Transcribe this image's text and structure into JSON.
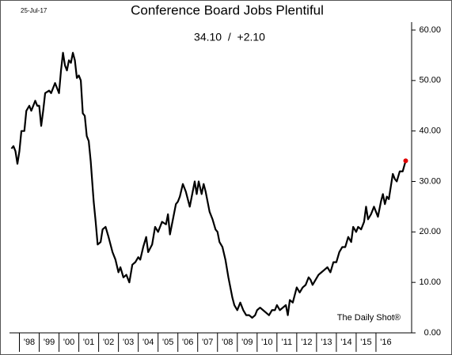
{
  "chart_data": {
    "type": "line",
    "title": "Conference Board Jobs Plentiful",
    "subtitle": "34.10  /  +2.10",
    "date": "25-Jul-17",
    "annotation": "The Daily Shot®",
    "x": [
      1997.6,
      1997.7,
      1997.8,
      1997.9,
      1998.0,
      1998.1,
      1998.25,
      1998.35,
      1998.5,
      1998.6,
      1998.8,
      1998.9,
      1999.0,
      1999.1,
      1999.2,
      1999.3,
      1999.5,
      1999.6,
      1999.8,
      2000.0,
      2000.1,
      2000.2,
      2000.3,
      2000.4,
      2000.5,
      2000.6,
      2000.7,
      2000.8,
      2000.9,
      2001.0,
      2001.1,
      2001.2,
      2001.3,
      2001.4,
      2001.5,
      2001.6,
      2001.75,
      2001.85,
      2001.95,
      2002.1,
      2002.2,
      2002.35,
      2002.5,
      2002.7,
      2002.85,
      2003.0,
      2003.1,
      2003.25,
      2003.4,
      2003.55,
      2003.7,
      2003.85,
      2004.0,
      2004.1,
      2004.25,
      2004.4,
      2004.5,
      2004.7,
      2004.85,
      2005.0,
      2005.2,
      2005.4,
      2005.5,
      2005.6,
      2005.75,
      2005.9,
      2006.0,
      2006.1,
      2006.25,
      2006.4,
      2006.5,
      2006.6,
      2006.75,
      2006.85,
      2006.95,
      2007.05,
      2007.2,
      2007.3,
      2007.4,
      2007.5,
      2007.6,
      2007.75,
      2007.9,
      2008.0,
      2008.1,
      2008.25,
      2008.4,
      2008.55,
      2008.65,
      2008.75,
      2008.85,
      2009.0,
      2009.15,
      2009.3,
      2009.45,
      2009.6,
      2009.75,
      2009.9,
      2010.0,
      2010.15,
      2010.3,
      2010.45,
      2010.6,
      2010.75,
      2010.9,
      2011.0,
      2011.15,
      2011.3,
      2011.45,
      2011.55,
      2011.65,
      2011.8,
      2011.9,
      2012.0,
      2012.15,
      2012.3,
      2012.45,
      2012.6,
      2012.7,
      2012.8,
      2012.95,
      2013.1,
      2013.25,
      2013.4,
      2013.55,
      2013.7,
      2013.85,
      2014.0,
      2014.15,
      2014.3,
      2014.45,
      2014.6,
      2014.75,
      2014.85,
      2015.0,
      2015.1,
      2015.25,
      2015.4,
      2015.5,
      2015.6,
      2015.75,
      2015.9,
      2016.0,
      2016.1,
      2016.25,
      2016.35,
      2016.45,
      2016.55,
      2016.65,
      2016.75,
      2016.85,
      2016.95,
      2017.05,
      2017.2,
      2017.35,
      2017.5
    ],
    "series": [
      {
        "color": "#000000",
        "last_point_color": "#e00000",
        "values": [
          36.5,
          37,
          36,
          33.5,
          36,
          40,
          40,
          44,
          45,
          44,
          46,
          45,
          45,
          41,
          44,
          47.5,
          48,
          47.5,
          49.5,
          47.5,
          52,
          55.5,
          53,
          52,
          54,
          53.5,
          55.5,
          54,
          50.5,
          51,
          50,
          43.5,
          43,
          39,
          38,
          34,
          26,
          22,
          17.5,
          18,
          20.5,
          21,
          19,
          16,
          14.5,
          12,
          13,
          11,
          11.5,
          10,
          13.5,
          14,
          15,
          14.5,
          17,
          19,
          16,
          17.5,
          21,
          20,
          22,
          21.5,
          23.5,
          19.5,
          22.5,
          25.5,
          26,
          27,
          29.5,
          28,
          26.5,
          25,
          28,
          30,
          27.5,
          30,
          27.5,
          29.5,
          28,
          26,
          24,
          22.5,
          20.5,
          20,
          18,
          17,
          14.5,
          11,
          9,
          7,
          5.5,
          4.5,
          6,
          4.5,
          3.5,
          3.5,
          3,
          3.5,
          4.5,
          5,
          4.5,
          4,
          3.5,
          4.5,
          4.5,
          5.5,
          4.5,
          5,
          5.5,
          3.5,
          6.5,
          6,
          7.5,
          9,
          8,
          9,
          9.5,
          11,
          10.5,
          9.5,
          10.5,
          11.5,
          12,
          12.5,
          13,
          12,
          14,
          14,
          16,
          17,
          17,
          19,
          18,
          21,
          20,
          21,
          20.5,
          22,
          25,
          22.5,
          23.5,
          25,
          24,
          23,
          26,
          27.5,
          25.5,
          27,
          26.5,
          29,
          31.5,
          30.5,
          30,
          32,
          32,
          34.1
        ]
      }
    ],
    "xlim": [
      1997.5,
      2017.8
    ],
    "xticks": [
      {
        "value": 1998.5,
        "label": "'98"
      },
      {
        "value": 1999.5,
        "label": "'99"
      },
      {
        "value": 2000.5,
        "label": "'00"
      },
      {
        "value": 2001.5,
        "label": "'01"
      },
      {
        "value": 2002.5,
        "label": "'02"
      },
      {
        "value": 2003.5,
        "label": "'03"
      },
      {
        "value": 2004.5,
        "label": "'04"
      },
      {
        "value": 2005.5,
        "label": "'05"
      },
      {
        "value": 2006.5,
        "label": "'06"
      },
      {
        "value": 2007.5,
        "label": "'07"
      },
      {
        "value": 2008.5,
        "label": "'08"
      },
      {
        "value": 2009.5,
        "label": "'09"
      },
      {
        "value": 2010.5,
        "label": "'10"
      },
      {
        "value": 2011.5,
        "label": "'11"
      },
      {
        "value": 2012.5,
        "label": "'12"
      },
      {
        "value": 2013.5,
        "label": "'13"
      },
      {
        "value": 2014.5,
        "label": "'14"
      },
      {
        "value": 2015.5,
        "label": "'15"
      },
      {
        "value": 2016.5,
        "label": "'16"
      }
    ],
    "ylim": [
      0,
      60
    ],
    "yticks": [
      {
        "value": 0,
        "label": "0.00"
      },
      {
        "value": 10,
        "label": "10.00"
      },
      {
        "value": 20,
        "label": "20.00"
      },
      {
        "value": 30,
        "label": "30.00"
      },
      {
        "value": 40,
        "label": "40.00"
      },
      {
        "value": 50,
        "label": "50.00"
      },
      {
        "value": 60,
        "label": "60.00"
      }
    ]
  }
}
